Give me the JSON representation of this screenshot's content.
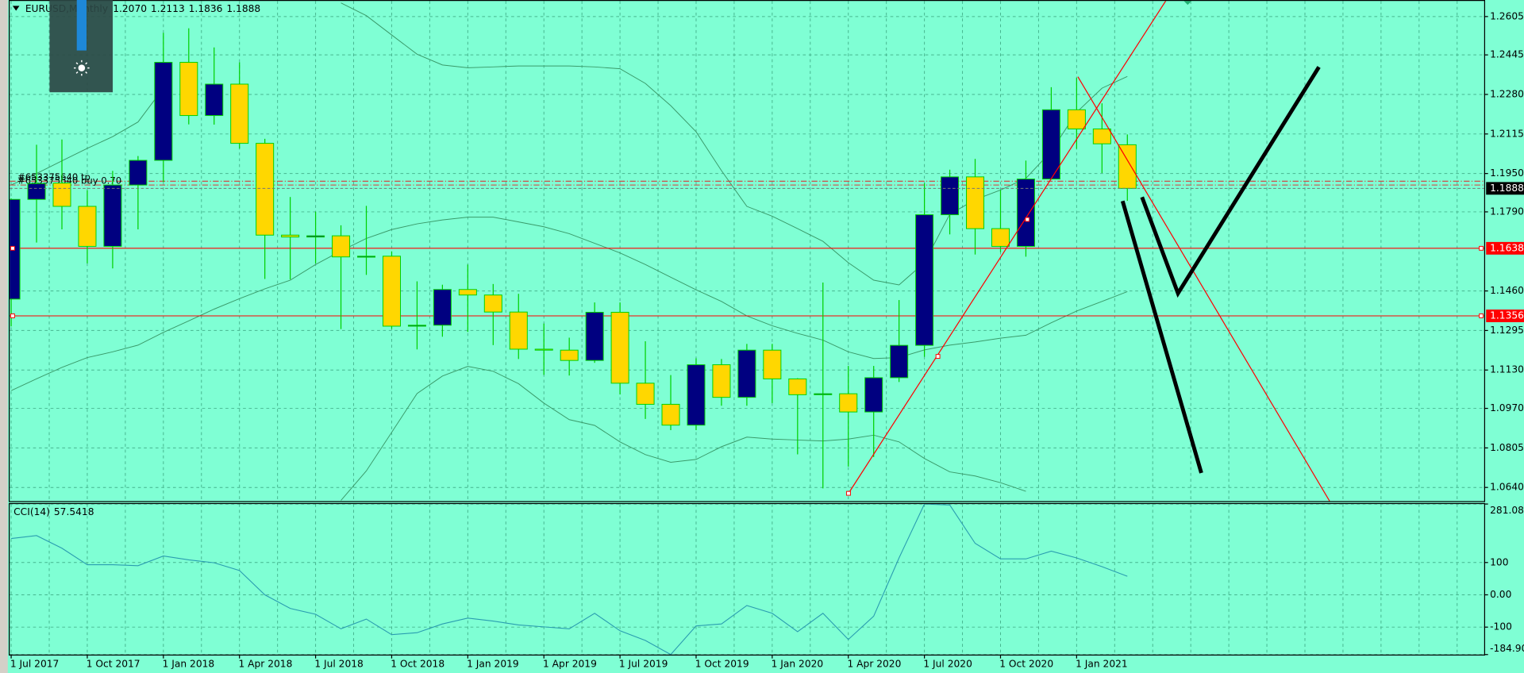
{
  "chart_data": [
    {
      "type": "candlestick",
      "title": "EURUSD,Monthly",
      "ohlc_labels": [
        "1.2070",
        "1.2113",
        "1.1836",
        "1.1888"
      ],
      "categories": [
        "1 Jul 2017",
        null,
        null,
        "1 Oct 2017",
        null,
        null,
        "1 Jan 2018",
        null,
        null,
        "1 Apr 2018",
        null,
        null,
        "1 Jul 2018",
        null,
        null,
        "1 Oct 2018",
        null,
        null,
        "1 Jan 2019",
        null,
        null,
        "1 Apr 2019",
        null,
        null,
        "1 Jul 2019",
        null,
        null,
        "1 Oct 2019",
        null,
        null,
        "1 Jan 2020",
        null,
        null,
        "1 Apr 2020",
        null,
        null,
        "1 Jul 2020",
        null,
        null,
        "1 Oct 2020",
        null,
        null,
        "1 Jan 2021",
        null,
        null
      ],
      "open": [
        1.1426,
        1.1842,
        1.191,
        1.1813,
        1.1646,
        1.1902,
        1.2005,
        1.2414,
        1.2192,
        1.2323,
        1.2076,
        1.1693,
        1.1685,
        1.169,
        1.1602,
        1.1605,
        1.1313,
        1.1317,
        1.1466,
        1.1443,
        1.1372,
        1.1217,
        1.1213,
        1.117,
        1.1371,
        1.1075,
        1.0987,
        1.09,
        1.1152,
        1.1016,
        1.1213,
        1.1093,
        1.1027,
        1.1031,
        1.0955,
        1.1098,
        1.1233,
        1.1778,
        1.1936,
        1.172,
        1.1646,
        1.1927,
        1.2216,
        1.2136,
        1.207
      ],
      "high": [
        1.1846,
        1.207,
        1.2092,
        1.188,
        1.1961,
        1.2023,
        1.2537,
        1.2556,
        1.2476,
        1.2414,
        1.2095,
        1.1852,
        1.1791,
        1.1734,
        1.1815,
        1.1625,
        1.15,
        1.1486,
        1.157,
        1.1489,
        1.1448,
        1.1324,
        1.1265,
        1.1412,
        1.1412,
        1.125,
        1.1109,
        1.1179,
        1.1176,
        1.1239,
        1.1239,
        1.1096,
        1.1495,
        1.1147,
        1.1147,
        1.1422,
        1.1909,
        1.1966,
        1.2011,
        1.1881,
        1.2004,
        1.231,
        1.2349,
        1.2243,
        1.2113
      ],
      "low": [
        1.1312,
        1.1662,
        1.1717,
        1.1575,
        1.1554,
        1.1717,
        1.1915,
        1.2155,
        1.2154,
        1.2054,
        1.151,
        1.1508,
        1.1575,
        1.1301,
        1.1527,
        1.1302,
        1.1216,
        1.1269,
        1.1289,
        1.1234,
        1.1176,
        1.111,
        1.1107,
        1.116,
        1.1028,
        1.0926,
        1.0879,
        1.0879,
        1.0981,
        1.0981,
        1.0992,
        1.0778,
        1.0636,
        1.0727,
        1.0767,
        1.108,
        1.1185,
        1.1696,
        1.1612,
        1.1622,
        1.1603,
        1.1925,
        1.2053,
        1.1952,
        1.1836
      ],
      "close": [
        1.1842,
        1.1908,
        1.1813,
        1.1646,
        1.1902,
        1.2005,
        1.2414,
        1.2192,
        1.2323,
        1.2076,
        1.1693,
        1.1685,
        1.169,
        1.1602,
        1.1605,
        1.1313,
        1.1317,
        1.1466,
        1.1443,
        1.1372,
        1.1217,
        1.1213,
        1.117,
        1.1371,
        1.1075,
        1.0987,
        1.09,
        1.1152,
        1.1016,
        1.1213,
        1.1093,
        1.1027,
        1.1031,
        1.0955,
        1.1098,
        1.1233,
        1.1778,
        1.1936,
        1.172,
        1.1646,
        1.1927,
        1.2216,
        1.2136,
        1.2074,
        1.1888
      ],
      "up_color": "#000080",
      "down_color": "#ffd700",
      "wick_color": "#00d000",
      "background": "#7fffd4",
      "grid": true,
      "ylim": [
        1.0583,
        1.267
      ],
      "yticks": [
        1.2605,
        1.2445,
        {
          "value": 1.228,
          "label": "1.2280"
        },
        1.2115,
        {
          "value": 1.195,
          "label": "1.1950"
        },
        {
          "value": 1.179,
          "label": "1.1790"
        },
        {
          "value": 1.146,
          "label": "1.1460"
        },
        1.1295,
        {
          "value": 1.113,
          "label": "1.1130"
        },
        {
          "value": 1.097,
          "label": "1.0970"
        },
        1.0805,
        {
          "value": 1.064,
          "label": "1.0640"
        }
      ],
      "overlays": [
        {
          "color": "#3a9a6a",
          "values": [
            1.1902,
            1.195,
            1.2003,
            1.2055,
            1.2104,
            1.2165,
            1.2306,
            null,
            null,
            null,
            null,
            null,
            null,
            1.2662,
            1.2609,
            1.2528,
            1.2448,
            1.2403,
            1.2391,
            1.2395,
            1.2399,
            1.2399,
            1.2399,
            1.2395,
            1.2387,
            1.2326,
            1.2233,
            1.2124,
            1.1962,
            1.1813,
            1.1772,
            1.172,
            1.1667,
            1.1578,
            1.1505,
            1.1485,
            1.1578,
            1.178,
            1.1841,
            1.1881,
            1.193,
            1.2043,
            1.2205,
            1.2306,
            1.2355
          ]
        },
        {
          "color": "#3a9a6a",
          "values": [
            1.1044,
            1.1093,
            1.1141,
            1.1182,
            1.1206,
            1.1234,
            1.1287,
            1.1335,
            1.1384,
            1.1428,
            1.1469,
            1.1505,
            1.157,
            1.1627,
            1.1679,
            1.1716,
            1.174,
            1.1756,
            1.1768,
            1.1768,
            1.1748,
            1.1728,
            1.1699,
            1.1659,
            1.1619,
            1.157,
            1.1517,
            1.1465,
            1.1416,
            1.1356,
            1.1315,
            1.1283,
            1.1255,
            1.1206,
            1.1178,
            1.1182,
            1.1214,
            1.1234,
            1.1247,
            1.1263,
            1.1275,
            1.1327,
            1.1376,
            1.1416,
            1.1457
          ]
        },
        {
          "color": "#3a9a6a",
          "values": [
            null,
            null,
            null,
            null,
            null,
            null,
            null,
            null,
            null,
            null,
            null,
            null,
            null,
            1.0586,
            1.0709,
            1.087,
            1.1032,
            1.1105,
            1.1145,
            1.1125,
            1.1073,
            1.0992,
            1.0923,
            1.0899,
            1.083,
            1.0777,
            1.0745,
            1.0757,
            1.081,
            1.085,
            1.0842,
            1.0838,
            1.0834,
            1.0842,
            1.0858,
            1.083,
            1.0761,
            1.0705,
            1.0688,
            1.066,
            1.0624,
            null,
            null,
            null,
            null
          ]
        }
      ],
      "levels": [
        {
          "value": 1.1638,
          "color": "#ff0000"
        },
        {
          "value": 1.1356,
          "color": "#ff0000"
        }
      ],
      "orders": [
        {
          "label": "#653375640 tp",
          "value": 1.1918,
          "color": "#d83a3a"
        },
        {
          "label": "#653375640 buy 0.70",
          "value": 1.1902,
          "color": "#d83a3a"
        }
      ]
    },
    {
      "type": "line",
      "title": "CCI(14)",
      "color": "#2a9db0",
      "values": [
        174.4,
        183.4,
        144.3,
        93.2,
        93.2,
        90.2,
        120.3,
        108.2,
        99.2,
        75.2,
        0,
        -42.1,
        -60.1,
        -105.2,
        -75.2,
        -123.3,
        -117.3,
        -90.2,
        -72.2,
        -81.2,
        -93.2,
        -99.2,
        -105.2,
        -57.1,
        -111.2,
        -141.3,
        -184.9,
        -96.2,
        -90.2,
        -33.1,
        -57.1,
        -114.2,
        -57.1,
        -138.3,
        -66.1,
        114.2,
        281.083,
        278,
        159.3,
        111.2,
        111.2,
        135.3,
        114.2,
        87.2,
        57.5418
      ],
      "ylim": [
        -184.9,
        281.083
      ],
      "yticks": [
        281.083,
        100,
        {
          "value": 0,
          "label": "0.00"
        },
        -100,
        {
          "value": -184.9,
          "label": "-184.900"
        }
      ],
      "grid": true
    }
  ]
}
